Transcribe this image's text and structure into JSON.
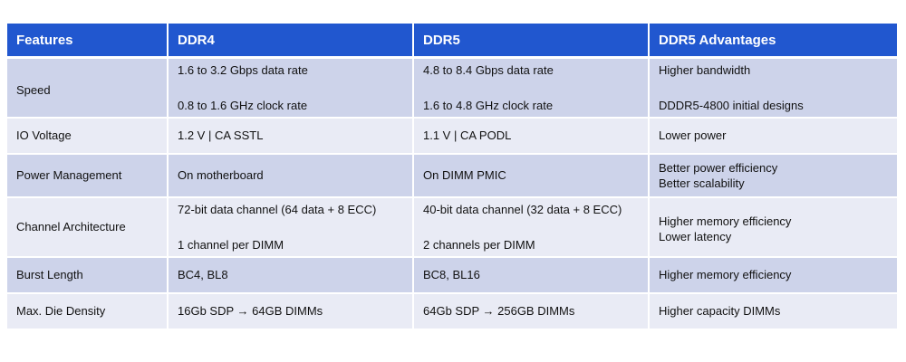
{
  "table": {
    "headers": [
      "Features",
      "DDR4",
      "DDR5",
      "DDR5 Advantages"
    ],
    "rows": [
      {
        "feature": "Speed",
        "ddr4": [
          "1.6 to 3.2 Gbps data rate",
          "0.8 to 1.6 GHz clock rate"
        ],
        "ddr5": [
          "4.8 to 8.4 Gbps data rate",
          "1.6 to 4.8 GHz clock rate"
        ],
        "advantages": [
          "Higher bandwidth",
          "DDDR5-4800 initial designs"
        ]
      },
      {
        "feature": "IO Voltage",
        "ddr4": [
          "1.2 V | CA SSTL"
        ],
        "ddr5": [
          "1.1 V | CA PODL"
        ],
        "advantages": [
          "Lower power"
        ]
      },
      {
        "feature": "Power Management",
        "ddr4": [
          "On motherboard"
        ],
        "ddr5": [
          "On DIMM PMIC"
        ],
        "advantages": [
          "Better power efficiency",
          "Better scalability"
        ]
      },
      {
        "feature": "Channel Architecture",
        "ddr4": [
          "72-bit data channel (64 data + 8 ECC)",
          "1 channel per DIMM"
        ],
        "ddr5": [
          "40-bit data channel (32 data + 8 ECC)",
          "2 channels per DIMM"
        ],
        "advantages": [
          "Higher memory efficiency",
          "Lower latency"
        ]
      },
      {
        "feature": "Burst Length",
        "ddr4": [
          "BC4, BL8"
        ],
        "ddr5": [
          "BC8, BL16"
        ],
        "advantages": [
          "Higher memory efficiency"
        ]
      },
      {
        "feature": "Max. Die Density",
        "ddr4": [
          "16Gb SDP → 64GB DIMMs"
        ],
        "ddr5": [
          "64Gb SDP → 256GB DIMMs"
        ],
        "advantages": [
          "Higher capacity DIMMs"
        ]
      }
    ]
  },
  "colors": {
    "header_bg": "#2157cf",
    "header_text": "#ffffff",
    "row_dark": "#cdd3ea",
    "row_light": "#e9ebf5"
  }
}
